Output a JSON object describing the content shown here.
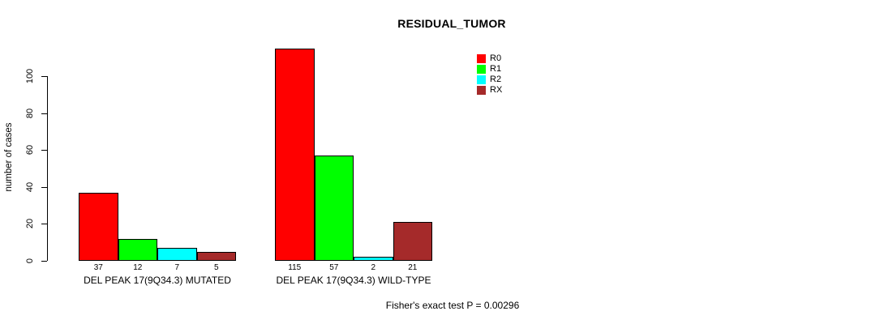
{
  "chart_data": {
    "type": "bar",
    "title": "RESIDUAL_TUMOR",
    "ylabel": "number of cases",
    "xlabel": "",
    "yticks": [
      0,
      20,
      40,
      60,
      80,
      100
    ],
    "ylim": [
      0,
      115
    ],
    "grid": false,
    "legend_position": "top-right",
    "bar_value_labels": true,
    "categories": [
      "DEL PEAK 17(9Q34.3) MUTATED",
      "DEL PEAK 17(9Q34.3) WILD-TYPE"
    ],
    "series": [
      {
        "name": "R0",
        "color": "#ff0000",
        "values": [
          37,
          115
        ]
      },
      {
        "name": "R1",
        "color": "#00ff00",
        "values": [
          12,
          57
        ]
      },
      {
        "name": "R2",
        "color": "#00ffff",
        "values": [
          7,
          2
        ]
      },
      {
        "name": "RX",
        "color": "#a52a2a",
        "values": [
          5,
          21
        ]
      }
    ]
  },
  "annotation": "Fisher's exact test P = 0.00296",
  "colors": {
    "background": "#ffffff",
    "axis": "#000000",
    "bar_border": "#000000",
    "text": "#000000"
  }
}
